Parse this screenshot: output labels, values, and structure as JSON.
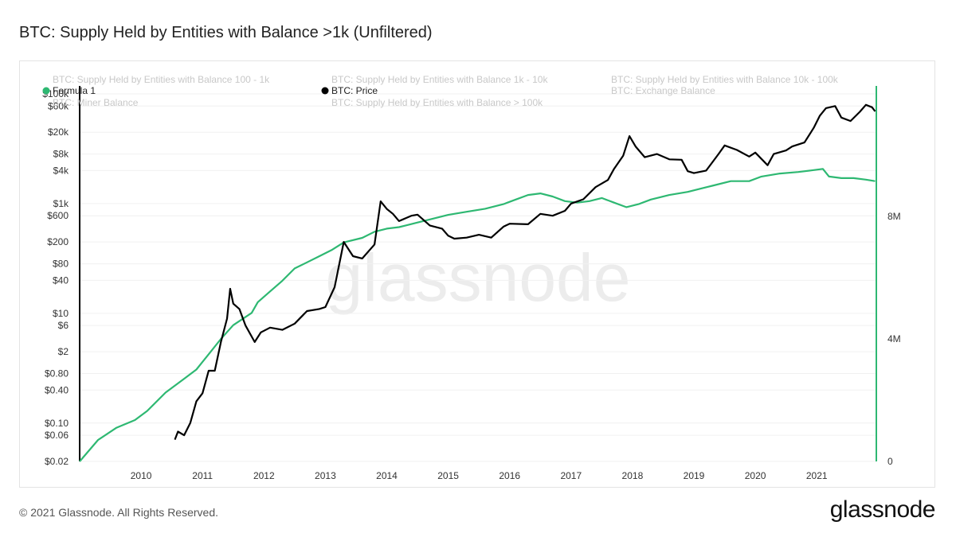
{
  "header": {
    "title": "BTC: Supply Held by Entities with Balance >1k (Unfiltered)"
  },
  "footer": {
    "copyright": "© 2021 Glassnode. All Rights Reserved.",
    "brand": "glassnode"
  },
  "watermark": "glassnode",
  "colors": {
    "formula": "#2eb872",
    "price": "#000000",
    "muted": "#c8c8c8",
    "text": "#333333"
  },
  "chart_data": {
    "type": "line",
    "title": "BTC: Supply Held by Entities with Balance >1k (Unfiltered)",
    "legend": {
      "inactive": [
        "BTC: Supply Held by Entities with Balance 100 - 1k",
        "BTC: Supply Held by Entities with Balance 1k - 10k",
        "BTC: Supply Held by Entities with Balance 10k - 100k",
        "BTC: Miner Balance",
        "BTC: Supply Held by Entities with Balance > 100k",
        "BTC: Exchange Balance"
      ],
      "active": [
        "Formula 1",
        "BTC: Price"
      ]
    },
    "x_ticks": [
      {
        "label": "2010",
        "t": 2010.0
      },
      {
        "label": "2011",
        "t": 2011.0
      },
      {
        "label": "2012",
        "t": 2012.0
      },
      {
        "label": "2013",
        "t": 2013.0
      },
      {
        "label": "2014",
        "t": 2014.0
      },
      {
        "label": "2015",
        "t": 2015.0
      },
      {
        "label": "2016",
        "t": 2016.0
      },
      {
        "label": "2017",
        "t": 2017.0
      },
      {
        "label": "2018",
        "t": 2018.0
      },
      {
        "label": "2019",
        "t": 2019.0
      },
      {
        "label": "2020",
        "t": 2020.0
      },
      {
        "label": "2021",
        "t": 2021.0
      }
    ],
    "xlim": [
      2009.0,
      2021.97
    ],
    "y_left": {
      "scale": "log",
      "range": [
        0.02,
        100000
      ],
      "ticks": [
        {
          "label": "$100k",
          "v": 100000
        },
        {
          "label": "$60k",
          "v": 60000
        },
        {
          "label": "$20k",
          "v": 20000
        },
        {
          "label": "$8k",
          "v": 8000
        },
        {
          "label": "$4k",
          "v": 4000
        },
        {
          "label": "$1k",
          "v": 1000
        },
        {
          "label": "$600",
          "v": 600
        },
        {
          "label": "$200",
          "v": 200
        },
        {
          "label": "$80",
          "v": 80
        },
        {
          "label": "$40",
          "v": 40
        },
        {
          "label": "$10",
          "v": 10
        },
        {
          "label": "$6",
          "v": 6
        },
        {
          "label": "$2",
          "v": 2
        },
        {
          "label": "$0.80",
          "v": 0.8
        },
        {
          "label": "$0.40",
          "v": 0.4
        },
        {
          "label": "$0.10",
          "v": 0.1
        },
        {
          "label": "$0.06",
          "v": 0.06
        },
        {
          "label": "$0.02",
          "v": 0.02
        }
      ]
    },
    "y_right": {
      "scale": "linear",
      "range": [
        0,
        12000000
      ],
      "ticks": [
        {
          "label": "0",
          "v": 0
        },
        {
          "label": "4M",
          "v": 4000000
        },
        {
          "label": "8M",
          "v": 8000000
        }
      ]
    },
    "series": [
      {
        "name": "Formula 1",
        "axis": "right",
        "points": [
          [
            2009.0,
            0
          ],
          [
            2009.3,
            700000
          ],
          [
            2009.6,
            1100000
          ],
          [
            2009.9,
            1350000
          ],
          [
            2010.1,
            1650000
          ],
          [
            2010.4,
            2250000
          ],
          [
            2010.7,
            2700000
          ],
          [
            2010.9,
            3000000
          ],
          [
            2011.1,
            3500000
          ],
          [
            2011.3,
            4000000
          ],
          [
            2011.5,
            4450000
          ],
          [
            2011.8,
            4850000
          ],
          [
            2011.9,
            5200000
          ],
          [
            2012.1,
            5550000
          ],
          [
            2012.3,
            5900000
          ],
          [
            2012.5,
            6300000
          ],
          [
            2012.7,
            6500000
          ],
          [
            2012.9,
            6700000
          ],
          [
            2013.1,
            6900000
          ],
          [
            2013.3,
            7150000
          ],
          [
            2013.6,
            7300000
          ],
          [
            2013.8,
            7500000
          ],
          [
            2014.0,
            7600000
          ],
          [
            2014.2,
            7650000
          ],
          [
            2014.5,
            7800000
          ],
          [
            2014.8,
            7950000
          ],
          [
            2015.0,
            8050000
          ],
          [
            2015.3,
            8150000
          ],
          [
            2015.6,
            8250000
          ],
          [
            2015.9,
            8400000
          ],
          [
            2016.1,
            8550000
          ],
          [
            2016.3,
            8700000
          ],
          [
            2016.5,
            8750000
          ],
          [
            2016.7,
            8650000
          ],
          [
            2016.9,
            8500000
          ],
          [
            2017.1,
            8450000
          ],
          [
            2017.3,
            8500000
          ],
          [
            2017.5,
            8600000
          ],
          [
            2017.7,
            8450000
          ],
          [
            2017.9,
            8300000
          ],
          [
            2018.1,
            8400000
          ],
          [
            2018.3,
            8550000
          ],
          [
            2018.6,
            8700000
          ],
          [
            2018.9,
            8800000
          ],
          [
            2019.1,
            8900000
          ],
          [
            2019.3,
            9000000
          ],
          [
            2019.6,
            9150000
          ],
          [
            2019.9,
            9150000
          ],
          [
            2020.1,
            9300000
          ],
          [
            2020.4,
            9400000
          ],
          [
            2020.7,
            9450000
          ],
          [
            2020.9,
            9500000
          ],
          [
            2021.1,
            9550000
          ],
          [
            2021.2,
            9300000
          ],
          [
            2021.4,
            9250000
          ],
          [
            2021.6,
            9250000
          ],
          [
            2021.8,
            9200000
          ],
          [
            2021.95,
            9150000
          ]
        ]
      },
      {
        "name": "BTC: Price",
        "axis": "left",
        "points": [
          [
            2010.55,
            0.05
          ],
          [
            2010.6,
            0.07
          ],
          [
            2010.7,
            0.06
          ],
          [
            2010.8,
            0.1
          ],
          [
            2010.9,
            0.25
          ],
          [
            2011.0,
            0.35
          ],
          [
            2011.1,
            0.9
          ],
          [
            2011.2,
            0.9
          ],
          [
            2011.3,
            3
          ],
          [
            2011.4,
            8
          ],
          [
            2011.45,
            28
          ],
          [
            2011.5,
            15
          ],
          [
            2011.6,
            12
          ],
          [
            2011.7,
            6
          ],
          [
            2011.85,
            3
          ],
          [
            2011.95,
            4.5
          ],
          [
            2012.1,
            5.5
          ],
          [
            2012.3,
            5
          ],
          [
            2012.5,
            6.5
          ],
          [
            2012.7,
            11
          ],
          [
            2012.9,
            12
          ],
          [
            2013.0,
            13
          ],
          [
            2013.15,
            30
          ],
          [
            2013.3,
            200
          ],
          [
            2013.45,
            110
          ],
          [
            2013.6,
            100
          ],
          [
            2013.8,
            180
          ],
          [
            2013.9,
            1100
          ],
          [
            2014.0,
            800
          ],
          [
            2014.1,
            650
          ],
          [
            2014.2,
            480
          ],
          [
            2014.4,
            600
          ],
          [
            2014.5,
            630
          ],
          [
            2014.7,
            400
          ],
          [
            2014.9,
            350
          ],
          [
            2015.0,
            260
          ],
          [
            2015.1,
            230
          ],
          [
            2015.3,
            240
          ],
          [
            2015.5,
            270
          ],
          [
            2015.7,
            240
          ],
          [
            2015.9,
            380
          ],
          [
            2016.0,
            430
          ],
          [
            2016.3,
            420
          ],
          [
            2016.5,
            650
          ],
          [
            2016.7,
            600
          ],
          [
            2016.9,
            740
          ],
          [
            2017.0,
            1000
          ],
          [
            2017.2,
            1200
          ],
          [
            2017.4,
            2000
          ],
          [
            2017.6,
            2700
          ],
          [
            2017.7,
            4300
          ],
          [
            2017.85,
            7500
          ],
          [
            2017.95,
            17000
          ],
          [
            2018.05,
            11000
          ],
          [
            2018.2,
            7000
          ],
          [
            2018.4,
            8000
          ],
          [
            2018.6,
            6400
          ],
          [
            2018.8,
            6300
          ],
          [
            2018.9,
            3900
          ],
          [
            2019.0,
            3600
          ],
          [
            2019.2,
            4000
          ],
          [
            2019.4,
            8000
          ],
          [
            2019.5,
            11500
          ],
          [
            2019.7,
            9500
          ],
          [
            2019.9,
            7200
          ],
          [
            2020.0,
            8500
          ],
          [
            2020.2,
            5000
          ],
          [
            2020.3,
            8000
          ],
          [
            2020.5,
            9300
          ],
          [
            2020.6,
            11000
          ],
          [
            2020.8,
            13000
          ],
          [
            2020.95,
            24000
          ],
          [
            2021.05,
            40000
          ],
          [
            2021.15,
            55000
          ],
          [
            2021.3,
            60000
          ],
          [
            2021.4,
            37000
          ],
          [
            2021.55,
            32000
          ],
          [
            2021.7,
            47000
          ],
          [
            2021.8,
            63000
          ],
          [
            2021.9,
            57000
          ],
          [
            2021.95,
            48000
          ]
        ]
      }
    ]
  }
}
